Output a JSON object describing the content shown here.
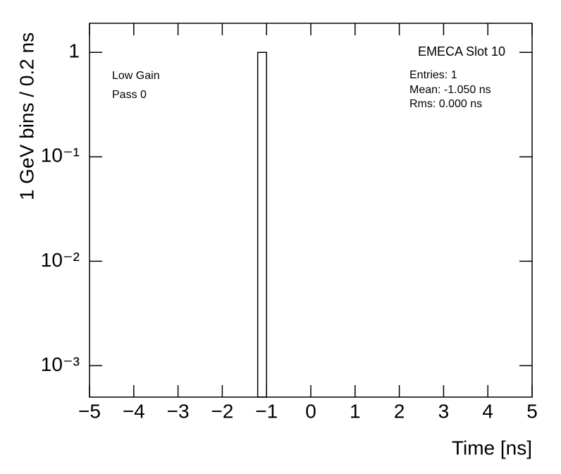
{
  "chart_data": {
    "type": "histogram",
    "title": "EMECA Slot 10",
    "annotations": [
      "Low Gain",
      "Pass 0"
    ],
    "stats": [
      "Entries: 1",
      "Mean: -1.050 ns",
      "Rms: 0.000 ns"
    ],
    "x_label": "Time [ns]",
    "y_label": "1 GeV bins / 0.2 ns",
    "bins": [
      -1.2,
      -1.0
    ],
    "values": [
      1
    ],
    "color": "#000000",
    "xlim": [
      -5,
      5
    ],
    "ylim": [
      0.0005,
      1.9
    ],
    "log_y": true,
    "xticks": [
      {
        "value": -5,
        "label": "−5"
      },
      {
        "value": -4,
        "label": "−4"
      },
      {
        "value": -3,
        "label": "−3"
      },
      {
        "value": -2,
        "label": "−2"
      },
      {
        "value": -1,
        "label": "−1"
      },
      0,
      1,
      2,
      3,
      4,
      5
    ],
    "yticks": [
      {
        "value": 0.001,
        "label": "10⁻³"
      },
      {
        "value": 0.01,
        "label": "10⁻²"
      },
      {
        "value": 0.1,
        "label": "10⁻¹"
      },
      1
    ]
  }
}
